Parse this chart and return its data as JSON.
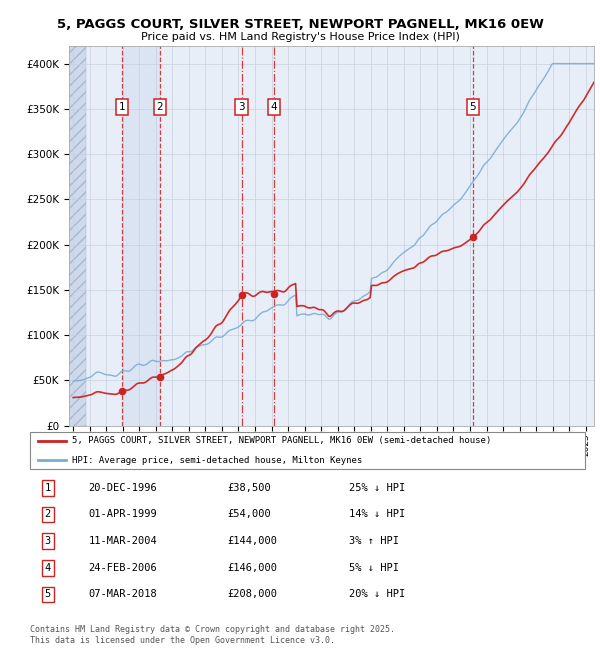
{
  "title": "5, PAGGS COURT, SILVER STREET, NEWPORT PAGNELL, MK16 0EW",
  "subtitle": "Price paid vs. HM Land Registry's House Price Index (HPI)",
  "ylim": [
    0,
    420000
  ],
  "xlim_start": 1993.75,
  "xlim_end": 2025.5,
  "hpi_color": "#7aadd4",
  "sale_color": "#cc2222",
  "background_color": "#e8eef8",
  "grid_color": "#c8d0e0",
  "legend_label_red": "5, PAGGS COURT, SILVER STREET, NEWPORT PAGNELL, MK16 0EW (semi-detached house)",
  "legend_label_blue": "HPI: Average price, semi-detached house, Milton Keynes",
  "sales": [
    {
      "label": "1",
      "date_num": 1996.97,
      "price": 38500
    },
    {
      "label": "2",
      "date_num": 1999.25,
      "price": 54000
    },
    {
      "label": "3",
      "date_num": 2004.19,
      "price": 144000
    },
    {
      "label": "4",
      "date_num": 2006.15,
      "price": 146000
    },
    {
      "label": "5",
      "date_num": 2018.18,
      "price": 208000
    }
  ],
  "table_rows": [
    {
      "num": "1",
      "date": "20-DEC-1996",
      "price": "£38,500",
      "hpi": "25% ↓ HPI"
    },
    {
      "num": "2",
      "date": "01-APR-1999",
      "price": "£54,000",
      "hpi": "14% ↓ HPI"
    },
    {
      "num": "3",
      "date": "11-MAR-2004",
      "price": "£144,000",
      "hpi": "3% ↑ HPI"
    },
    {
      "num": "4",
      "date": "24-FEB-2006",
      "price": "£146,000",
      "hpi": "5% ↓ HPI"
    },
    {
      "num": "5",
      "date": "07-MAR-2018",
      "price": "£208,000",
      "hpi": "20% ↓ HPI"
    }
  ],
  "footer": "Contains HM Land Registry data © Crown copyright and database right 2025.\nThis data is licensed under the Open Government Licence v3.0."
}
